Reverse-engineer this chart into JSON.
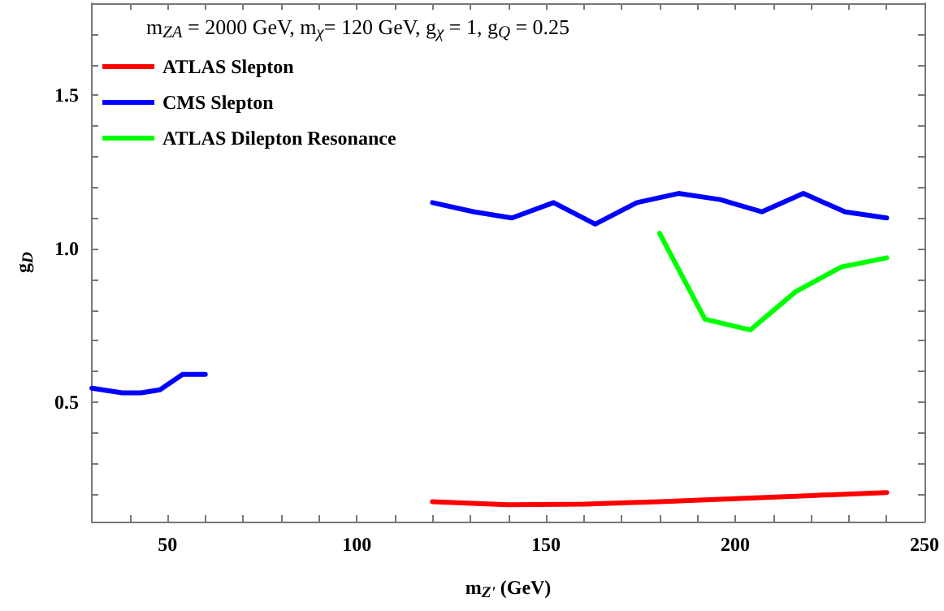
{
  "chart_data": {
    "type": "line",
    "xlabel": "m$_{Z'}$ (GeV)",
    "ylabel": "g$_{D}$",
    "annotations": [
      "m$_{ZA}$ = 2000 GeV, m$_{χ}$= 120 GeV, g$_{χ}$ = 1, g$_{Q}$ = 0.25"
    ],
    "series": [
      {
        "name": "ATLAS Slepton",
        "color": "#ff0000",
        "x": [
          120,
          140,
          160,
          180,
          200,
          220,
          240
        ],
        "values": [
          0.175,
          0.165,
          0.167,
          0.175,
          0.185,
          0.195,
          0.205
        ]
      },
      {
        "name": "CMS Slepton",
        "color": "#0000ff",
        "x": [
          30,
          38,
          43,
          48,
          54,
          60,
          null,
          120,
          131,
          141,
          152,
          163,
          174,
          185,
          196,
          207,
          218,
          229,
          240
        ],
        "values": [
          0.545,
          0.53,
          0.53,
          0.54,
          0.59,
          0.59,
          null,
          1.15,
          1.12,
          1.1,
          1.15,
          1.08,
          1.15,
          1.18,
          1.16,
          1.12,
          1.18,
          1.12,
          1.1
        ]
      },
      {
        "name": "ATLAS Dilepton Resonance",
        "color": "#00ff00",
        "x": [
          180,
          192,
          204,
          216,
          228,
          240
        ],
        "values": [
          1.05,
          0.77,
          0.735,
          0.86,
          0.94,
          0.97
        ]
      }
    ],
    "xlim": [
      30,
      250
    ],
    "ylim": [
      0.11,
      1.8
    ],
    "xticks": [
      {
        "value": 40,
        "label": null
      },
      50,
      {
        "value": 60,
        "label": null
      },
      {
        "value": 70,
        "label": null
      },
      {
        "value": 80,
        "label": null
      },
      {
        "value": 90,
        "label": null
      },
      100,
      {
        "value": 110,
        "label": null
      },
      {
        "value": 120,
        "label": null
      },
      {
        "value": 130,
        "label": null
      },
      {
        "value": 140,
        "label": null
      },
      150,
      {
        "value": 160,
        "label": null
      },
      {
        "value": 170,
        "label": null
      },
      {
        "value": 180,
        "label": null
      },
      {
        "value": 190,
        "label": null
      },
      200,
      {
        "value": 210,
        "label": null
      },
      {
        "value": 220,
        "label": null
      },
      {
        "value": 230,
        "label": null
      },
      {
        "value": 240,
        "label": null
      },
      250
    ],
    "yticks": [
      {
        "value": 0.2,
        "label": null
      },
      {
        "value": 0.3,
        "label": null
      },
      {
        "value": 0.4,
        "label": null
      },
      {
        "value": 0.5,
        "label": "0.5"
      },
      {
        "value": 0.6,
        "label": null
      },
      {
        "value": 0.7,
        "label": null
      },
      {
        "value": 0.8,
        "label": null
      },
      {
        "value": 0.9,
        "label": null
      },
      {
        "value": 1,
        "label": "1.0"
      },
      {
        "value": 1.1,
        "label": null
      },
      {
        "value": 1.2,
        "label": null
      },
      {
        "value": 1.3,
        "label": null
      },
      {
        "value": 1.4,
        "label": null
      },
      {
        "value": 1.5,
        "label": "1.5"
      },
      {
        "value": 1.6,
        "label": null
      },
      {
        "value": 1.7,
        "label": null
      }
    ],
    "grid": false,
    "legend": "top left",
    "marker": "none",
    "line_style": "solid"
  }
}
